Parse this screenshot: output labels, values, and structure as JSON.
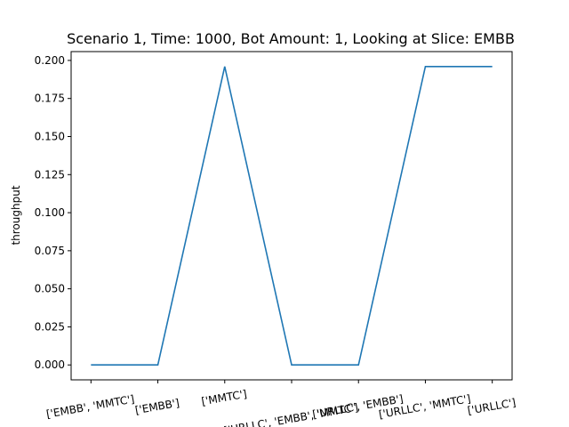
{
  "chart_data": {
    "type": "line",
    "title": "Scenario 1, Time: 1000, Bot Amount: 1, Looking at Slice: EMBB",
    "xlabel": "",
    "ylabel": "throughput",
    "categories": [
      "['EMBB', 'MMTC']",
      "['EMBB']",
      "['MMTC']",
      "['URLLC', 'EMBB', 'MMTC']",
      "['URLLC', 'EMBB']",
      "['URLLC', 'MMTC']",
      "['URLLC']"
    ],
    "series": [
      {
        "values": [
          0.0,
          0.0,
          0.196,
          0.0,
          0.0,
          0.196,
          0.196
        ]
      }
    ],
    "yticks": [
      "0.000",
      "0.025",
      "0.050",
      "0.075",
      "0.100",
      "0.125",
      "0.150",
      "0.175",
      "0.200"
    ],
    "ylim": [
      -0.0098,
      0.2058
    ],
    "grid": false,
    "line_color": "#1f77b4"
  }
}
